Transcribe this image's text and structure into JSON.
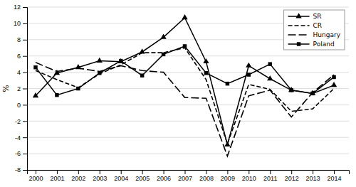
{
  "chart_data": {
    "type": "line",
    "x": [
      2000,
      2001,
      2002,
      2003,
      2004,
      2005,
      2006,
      2007,
      2008,
      2009,
      2010,
      2011,
      2012,
      2013,
      2014
    ],
    "xlim": [
      1999.6,
      2014.7
    ],
    "xticks": [
      2000,
      2001,
      2002,
      2003,
      2004,
      2005,
      2006,
      2007,
      2008,
      2009,
      2010,
      2011,
      2012,
      2013,
      2014
    ],
    "ylim": [
      -8,
      12
    ],
    "yticks": [
      -8,
      -6,
      -4,
      -2,
      0,
      2,
      4,
      6,
      8,
      10,
      12
    ],
    "ylabel": "%",
    "grid": "y",
    "legend": "upper right",
    "series": [
      {
        "name": "SR",
        "color": "#000000",
        "line_style": "solid",
        "marker": "triangle",
        "values": [
          1.1,
          3.9,
          4.6,
          5.4,
          5.3,
          6.5,
          8.3,
          10.7,
          5.3,
          -4.9,
          4.8,
          3.2,
          1.8,
          1.4,
          2.4
        ]
      },
      {
        "name": "CR",
        "color": "#000000",
        "line_style": "dashed",
        "marker": "none",
        "values": [
          4.2,
          3.1,
          2.1,
          3.8,
          4.9,
          6.4,
          6.4,
          7.0,
          3.1,
          -4.8,
          2.5,
          1.9,
          -0.8,
          -0.5,
          2.0
        ]
      },
      {
        "name": "Hungary",
        "color": "#000000",
        "line_style": "long-dashed",
        "marker": "none",
        "values": [
          5.2,
          4.1,
          4.5,
          4.1,
          4.8,
          4.2,
          4.0,
          0.9,
          0.8,
          -6.3,
          1.1,
          1.8,
          -1.5,
          1.5,
          3.7
        ]
      },
      {
        "name": "Poland",
        "color": "#000000",
        "line_style": "solid",
        "marker": "square",
        "values": [
          4.6,
          1.2,
          2.0,
          3.9,
          5.4,
          3.6,
          6.2,
          7.2,
          3.9,
          2.6,
          3.7,
          5.0,
          1.8,
          1.4,
          3.4
        ]
      }
    ]
  }
}
